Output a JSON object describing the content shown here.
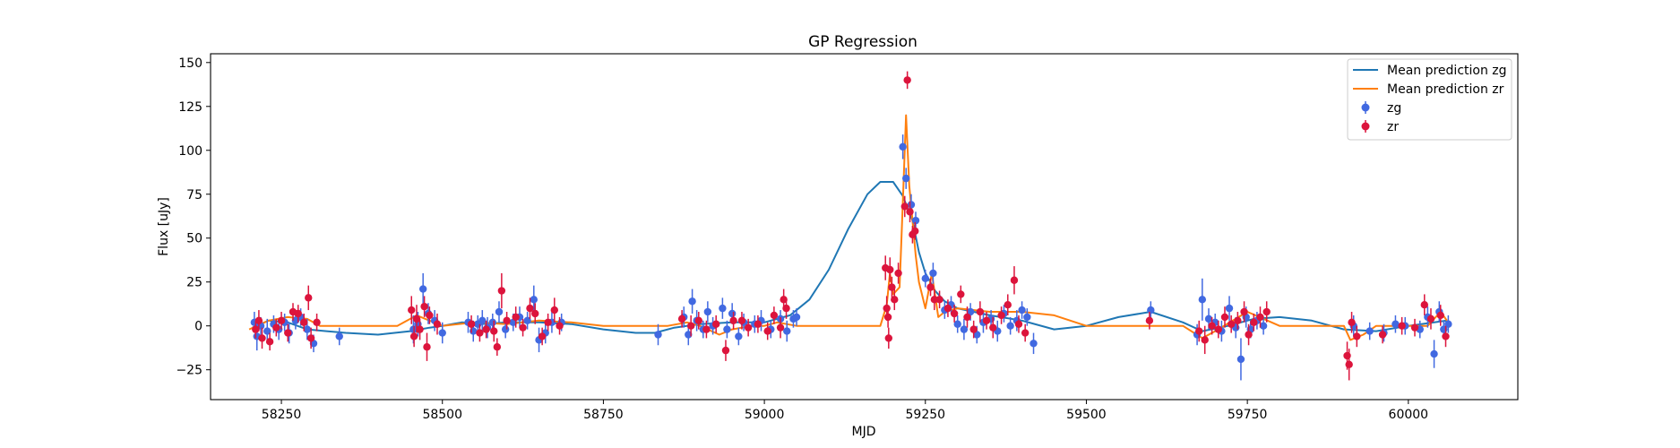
{
  "chart_data": {
    "type": "scatter",
    "title": "GP Regression",
    "xlabel": "MJD",
    "ylabel": "Flux [uJy]",
    "xlim": [
      58140,
      60170
    ],
    "ylim": [
      -42,
      155
    ],
    "xticks": [
      58250,
      58500,
      58750,
      59000,
      59250,
      59500,
      59750,
      60000
    ],
    "yticks": [
      -25,
      0,
      25,
      50,
      75,
      100,
      125,
      150
    ],
    "grid": false,
    "legend_position": "top-right",
    "series": [
      {
        "name": "Mean prediction zg",
        "kind": "line",
        "color": "#1f77b4",
        "x": [
          58205,
          58230,
          58260,
          58290,
          58320,
          58350,
          58400,
          58450,
          58480,
          58500,
          58530,
          58560,
          58600,
          58650,
          58700,
          58750,
          58800,
          58830,
          58860,
          58900,
          58950,
          59000,
          59040,
          59070,
          59100,
          59130,
          59160,
          59180,
          59200,
          59215,
          59230,
          59240,
          59250,
          59265,
          59280,
          59300,
          59350,
          59400,
          59450,
          59500,
          59550,
          59600,
          59650,
          59680,
          59720,
          59760,
          59800,
          59850,
          59900,
          59950,
          60000,
          60040,
          60060
        ],
        "y": [
          -1,
          3,
          2,
          -2,
          -3,
          -4,
          -5,
          -3,
          -1,
          0,
          2,
          1,
          2,
          2,
          1,
          -2,
          -4,
          -4,
          -1,
          1,
          2,
          2,
          6,
          15,
          32,
          55,
          75,
          82,
          82,
          74,
          60,
          42,
          30,
          20,
          14,
          10,
          6,
          3,
          -2,
          0,
          5,
          8,
          2,
          -3,
          0,
          4,
          5,
          3,
          -2,
          -3,
          0,
          2,
          3
        ]
      },
      {
        "name": "Mean prediction zr",
        "kind": "line",
        "color": "#ff7f0e",
        "x": [
          58200,
          58230,
          58260,
          58290,
          58310,
          58350,
          58400,
          58430,
          58450,
          58460,
          58480,
          58500,
          58550,
          58600,
          58650,
          58700,
          58750,
          58800,
          58850,
          58880,
          58900,
          58930,
          58950,
          58980,
          59000,
          59020,
          59050,
          59100,
          59150,
          59180,
          59190,
          59195,
          59200,
          59210,
          59215,
          59220,
          59225,
          59230,
          59235,
          59240,
          59250,
          59260,
          59270,
          59280,
          59300,
          59350,
          59400,
          59450,
          59500,
          59600,
          59650,
          59680,
          59700,
          59750,
          59800,
          59850,
          59900,
          59910,
          59930,
          59950,
          60000,
          60030,
          60050,
          60060
        ],
        "y": [
          -2,
          3,
          5,
          4,
          0,
          0,
          0,
          0,
          4,
          6,
          3,
          0,
          2,
          1,
          3,
          2,
          0,
          0,
          0,
          2,
          0,
          -5,
          -2,
          0,
          0,
          2,
          0,
          0,
          0,
          0,
          12,
          30,
          18,
          22,
          70,
          120,
          80,
          60,
          40,
          25,
          10,
          30,
          5,
          8,
          10,
          8,
          8,
          6,
          0,
          0,
          0,
          -7,
          -3,
          8,
          0,
          0,
          0,
          -8,
          -5,
          0,
          0,
          0,
          8,
          3
        ]
      },
      {
        "name": "zg",
        "kind": "errorbar",
        "color": "#4169e1",
        "points": [
          [
            58208,
            2,
            6
          ],
          [
            58212,
            -6,
            8
          ],
          [
            58218,
            0,
            5
          ],
          [
            58228,
            -3,
            7
          ],
          [
            58238,
            1,
            5
          ],
          [
            58246,
            -2,
            6
          ],
          [
            58255,
            2,
            5
          ],
          [
            58262,
            -4,
            6
          ],
          [
            58272,
            3,
            5
          ],
          [
            58280,
            5,
            5
          ],
          [
            58290,
            -2,
            6
          ],
          [
            58300,
            -10,
            5
          ],
          [
            58340,
            -6,
            5
          ],
          [
            58455,
            -2,
            8
          ],
          [
            58462,
            1,
            7
          ],
          [
            58470,
            21,
            9
          ],
          [
            58478,
            7,
            6
          ],
          [
            58488,
            3,
            6
          ],
          [
            58500,
            -4,
            6
          ],
          [
            58540,
            2,
            6
          ],
          [
            58548,
            -3,
            6
          ],
          [
            58555,
            1,
            5
          ],
          [
            58562,
            3,
            6
          ],
          [
            58570,
            -1,
            6
          ],
          [
            58578,
            2,
            5
          ],
          [
            58588,
            8,
            6
          ],
          [
            58598,
            -2,
            5
          ],
          [
            58610,
            2,
            5
          ],
          [
            58620,
            5,
            6
          ],
          [
            58632,
            3,
            5
          ],
          [
            58642,
            15,
            8
          ],
          [
            58650,
            -8,
            7
          ],
          [
            58660,
            -4,
            6
          ],
          [
            58670,
            2,
            6
          ],
          [
            58685,
            2,
            5
          ],
          [
            58835,
            -5,
            6
          ],
          [
            58875,
            5,
            6
          ],
          [
            58882,
            -5,
            6
          ],
          [
            58888,
            14,
            7
          ],
          [
            58895,
            3,
            6
          ],
          [
            58905,
            -2,
            5
          ],
          [
            58912,
            8,
            6
          ],
          [
            58920,
            0,
            5
          ],
          [
            58935,
            10,
            6
          ],
          [
            58942,
            -2,
            5
          ],
          [
            58950,
            7,
            6
          ],
          [
            58960,
            -6,
            5
          ],
          [
            58968,
            2,
            5
          ],
          [
            58985,
            1,
            5
          ],
          [
            58995,
            3,
            6
          ],
          [
            59010,
            -2,
            5
          ],
          [
            59025,
            4,
            5
          ],
          [
            59035,
            -3,
            6
          ],
          [
            59045,
            4,
            5
          ],
          [
            59050,
            5,
            5
          ],
          [
            59215,
            102,
            7
          ],
          [
            59220,
            84,
            6
          ],
          [
            59228,
            69,
            6
          ],
          [
            59235,
            60,
            5
          ],
          [
            59250,
            27,
            5
          ],
          [
            59262,
            30,
            6
          ],
          [
            59280,
            9,
            5
          ],
          [
            59290,
            12,
            5
          ],
          [
            59300,
            1,
            5
          ],
          [
            59310,
            -2,
            6
          ],
          [
            59320,
            8,
            5
          ],
          [
            59330,
            -5,
            5
          ],
          [
            59340,
            2,
            6
          ],
          [
            59352,
            4,
            5
          ],
          [
            59362,
            -3,
            6
          ],
          [
            59372,
            7,
            5
          ],
          [
            59382,
            0,
            5
          ],
          [
            59392,
            3,
            6
          ],
          [
            59400,
            9,
            5
          ],
          [
            59408,
            5,
            5
          ],
          [
            59418,
            -10,
            6
          ],
          [
            59600,
            9,
            5
          ],
          [
            59672,
            -5,
            6
          ],
          [
            59680,
            15,
            12
          ],
          [
            59690,
            4,
            6
          ],
          [
            59700,
            2,
            5
          ],
          [
            59710,
            -3,
            6
          ],
          [
            59722,
            10,
            7
          ],
          [
            59732,
            -1,
            6
          ],
          [
            59740,
            -19,
            12
          ],
          [
            59748,
            5,
            6
          ],
          [
            59755,
            -2,
            5
          ],
          [
            59765,
            3,
            5
          ],
          [
            59775,
            0,
            5
          ],
          [
            59915,
            0,
            6
          ],
          [
            59940,
            -3,
            5
          ],
          [
            59962,
            -4,
            5
          ],
          [
            59980,
            1,
            5
          ],
          [
            59995,
            0,
            5
          ],
          [
            60018,
            -2,
            5
          ],
          [
            60030,
            5,
            6
          ],
          [
            60040,
            -16,
            8
          ],
          [
            60048,
            8,
            6
          ],
          [
            60055,
            -2,
            5
          ],
          [
            60062,
            1,
            5
          ]
        ]
      },
      {
        "name": "zr",
        "kind": "errorbar",
        "color": "#dc143c",
        "points": [
          [
            58210,
            -2,
            5
          ],
          [
            58215,
            3,
            6
          ],
          [
            58220,
            -7,
            6
          ],
          [
            58232,
            -9,
            5
          ],
          [
            58242,
            -1,
            5
          ],
          [
            58250,
            3,
            5
          ],
          [
            58260,
            -4,
            5
          ],
          [
            58268,
            8,
            5
          ],
          [
            58276,
            7,
            5
          ],
          [
            58285,
            2,
            5
          ],
          [
            58292,
            16,
            7
          ],
          [
            58296,
            -7,
            6
          ],
          [
            58305,
            2,
            5
          ],
          [
            58452,
            9,
            8
          ],
          [
            58456,
            -6,
            6
          ],
          [
            58460,
            4,
            8
          ],
          [
            58465,
            -2,
            6
          ],
          [
            58472,
            11,
            6
          ],
          [
            58476,
            -12,
            8
          ],
          [
            58480,
            6,
            5
          ],
          [
            58492,
            1,
            6
          ],
          [
            58545,
            1,
            5
          ],
          [
            58558,
            -4,
            5
          ],
          [
            58568,
            -2,
            5
          ],
          [
            58580,
            -3,
            6
          ],
          [
            58585,
            -12,
            5
          ],
          [
            58592,
            20,
            10
          ],
          [
            58600,
            3,
            5
          ],
          [
            58614,
            5,
            6
          ],
          [
            58625,
            -1,
            5
          ],
          [
            58636,
            10,
            6
          ],
          [
            58644,
            7,
            6
          ],
          [
            58655,
            -6,
            5
          ],
          [
            58664,
            2,
            5
          ],
          [
            58674,
            9,
            7
          ],
          [
            58682,
            0,
            5
          ],
          [
            58872,
            4,
            5
          ],
          [
            58886,
            0,
            6
          ],
          [
            58898,
            3,
            5
          ],
          [
            58910,
            -2,
            5
          ],
          [
            58925,
            1,
            5
          ],
          [
            58940,
            -14,
            6
          ],
          [
            58952,
            3,
            5
          ],
          [
            58965,
            3,
            5
          ],
          [
            58975,
            -1,
            5
          ],
          [
            58990,
            1,
            5
          ],
          [
            59005,
            -3,
            5
          ],
          [
            59015,
            6,
            5
          ],
          [
            59025,
            -1,
            6
          ],
          [
            59030,
            15,
            6
          ],
          [
            59034,
            10,
            6
          ],
          [
            59188,
            33,
            7
          ],
          [
            59190,
            10,
            7
          ],
          [
            59192,
            5,
            6
          ],
          [
            59193,
            -7,
            6
          ],
          [
            59195,
            32,
            7
          ],
          [
            59198,
            22,
            6
          ],
          [
            59202,
            15,
            6
          ],
          [
            59208,
            30,
            6
          ],
          [
            59218,
            68,
            6
          ],
          [
            59222,
            140,
            5
          ],
          [
            59226,
            65,
            6
          ],
          [
            59230,
            52,
            5
          ],
          [
            59234,
            54,
            5
          ],
          [
            59258,
            22,
            5
          ],
          [
            59264,
            15,
            6
          ],
          [
            59272,
            15,
            5
          ],
          [
            59285,
            10,
            5
          ],
          [
            59295,
            7,
            5
          ],
          [
            59305,
            18,
            5
          ],
          [
            59315,
            5,
            6
          ],
          [
            59325,
            -2,
            5
          ],
          [
            59335,
            8,
            6
          ],
          [
            59345,
            3,
            5
          ],
          [
            59355,
            -1,
            6
          ],
          [
            59368,
            6,
            5
          ],
          [
            59378,
            12,
            6
          ],
          [
            59388,
            26,
            8
          ],
          [
            59395,
            1,
            5
          ],
          [
            59405,
            -4,
            5
          ],
          [
            59598,
            3,
            5
          ],
          [
            59675,
            -3,
            6
          ],
          [
            59684,
            -8,
            8
          ],
          [
            59695,
            0,
            5
          ],
          [
            59705,
            -2,
            5
          ],
          [
            59715,
            5,
            6
          ],
          [
            59725,
            1,
            5
          ],
          [
            59735,
            3,
            5
          ],
          [
            59745,
            8,
            6
          ],
          [
            59752,
            -5,
            6
          ],
          [
            59760,
            2,
            5
          ],
          [
            59770,
            5,
            6
          ],
          [
            59780,
            8,
            6
          ],
          [
            59905,
            -17,
            8
          ],
          [
            59908,
            -22,
            9
          ],
          [
            59912,
            2,
            6
          ],
          [
            59920,
            -6,
            6
          ],
          [
            59960,
            -5,
            5
          ],
          [
            59990,
            0,
            5
          ],
          [
            60010,
            -1,
            5
          ],
          [
            60025,
            12,
            6
          ],
          [
            60035,
            4,
            6
          ],
          [
            60050,
            6,
            6
          ],
          [
            60058,
            -6,
            6
          ]
        ]
      }
    ]
  }
}
